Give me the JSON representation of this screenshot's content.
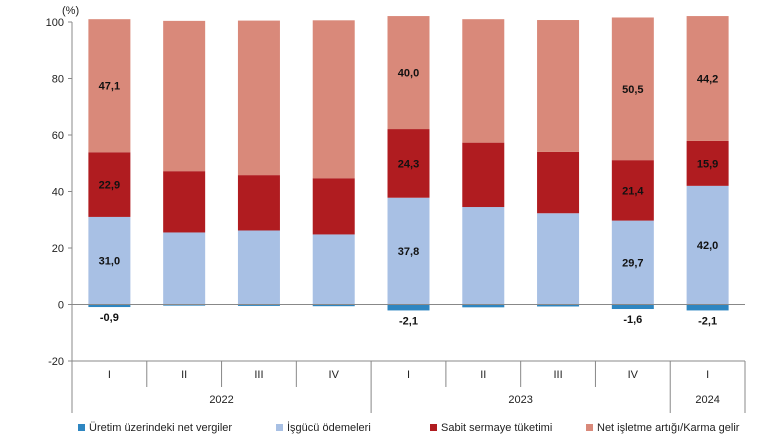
{
  "chart_data": {
    "type": "bar",
    "stacked": true,
    "ylabel": "(%)",
    "ylim": [
      -20,
      100
    ],
    "yticks": [
      -20,
      0,
      20,
      40,
      60,
      80,
      100
    ],
    "grid": false,
    "legend_position": "bottom",
    "categories": [
      "I",
      "II",
      "III",
      "IV",
      "I",
      "II",
      "III",
      "IV",
      "I"
    ],
    "years": [
      {
        "label": "2022",
        "span": [
          0,
          3
        ]
      },
      {
        "label": "2023",
        "span": [
          4,
          7
        ]
      },
      {
        "label": "2024",
        "span": [
          8,
          8
        ]
      }
    ],
    "series": [
      {
        "name": "Üretim üzerindeki net vergiler",
        "color": "#2e86c1",
        "values": [
          -0.9,
          -0.4,
          -0.5,
          -0.6,
          -2.1,
          -1.0,
          -0.7,
          -1.6,
          -2.1
        ],
        "labels": [
          "-0,9",
          "",
          "",
          "",
          "-2,1",
          "",
          "",
          "-1,6",
          "-2,1"
        ]
      },
      {
        "name": "İşgücü ödemeleri",
        "color": "#a8c0e4",
        "values": [
          31.0,
          25.5,
          26.2,
          24.8,
          37.8,
          34.5,
          32.3,
          29.7,
          42.0
        ],
        "labels": [
          "31,0",
          "",
          "",
          "",
          "37,8",
          "",
          "",
          "29,7",
          "42,0"
        ]
      },
      {
        "name": "Sabit sermaye tüketimi",
        "color": "#b01c20",
        "values": [
          22.9,
          21.7,
          19.6,
          19.9,
          24.3,
          22.8,
          21.7,
          21.4,
          15.9
        ],
        "labels": [
          "22,9",
          "",
          "",
          "",
          "24,3",
          "",
          "",
          "21,4",
          "15,9"
        ]
      },
      {
        "name": "Net işletme artığı/Karma gelir",
        "color": "#d9897a",
        "values": [
          47.1,
          53.2,
          54.7,
          55.9,
          40.0,
          43.7,
          46.7,
          50.5,
          44.2
        ],
        "labels": [
          "47,1",
          "",
          "",
          "",
          "40,0",
          "",
          "",
          "50,5",
          "44,2"
        ]
      }
    ]
  }
}
